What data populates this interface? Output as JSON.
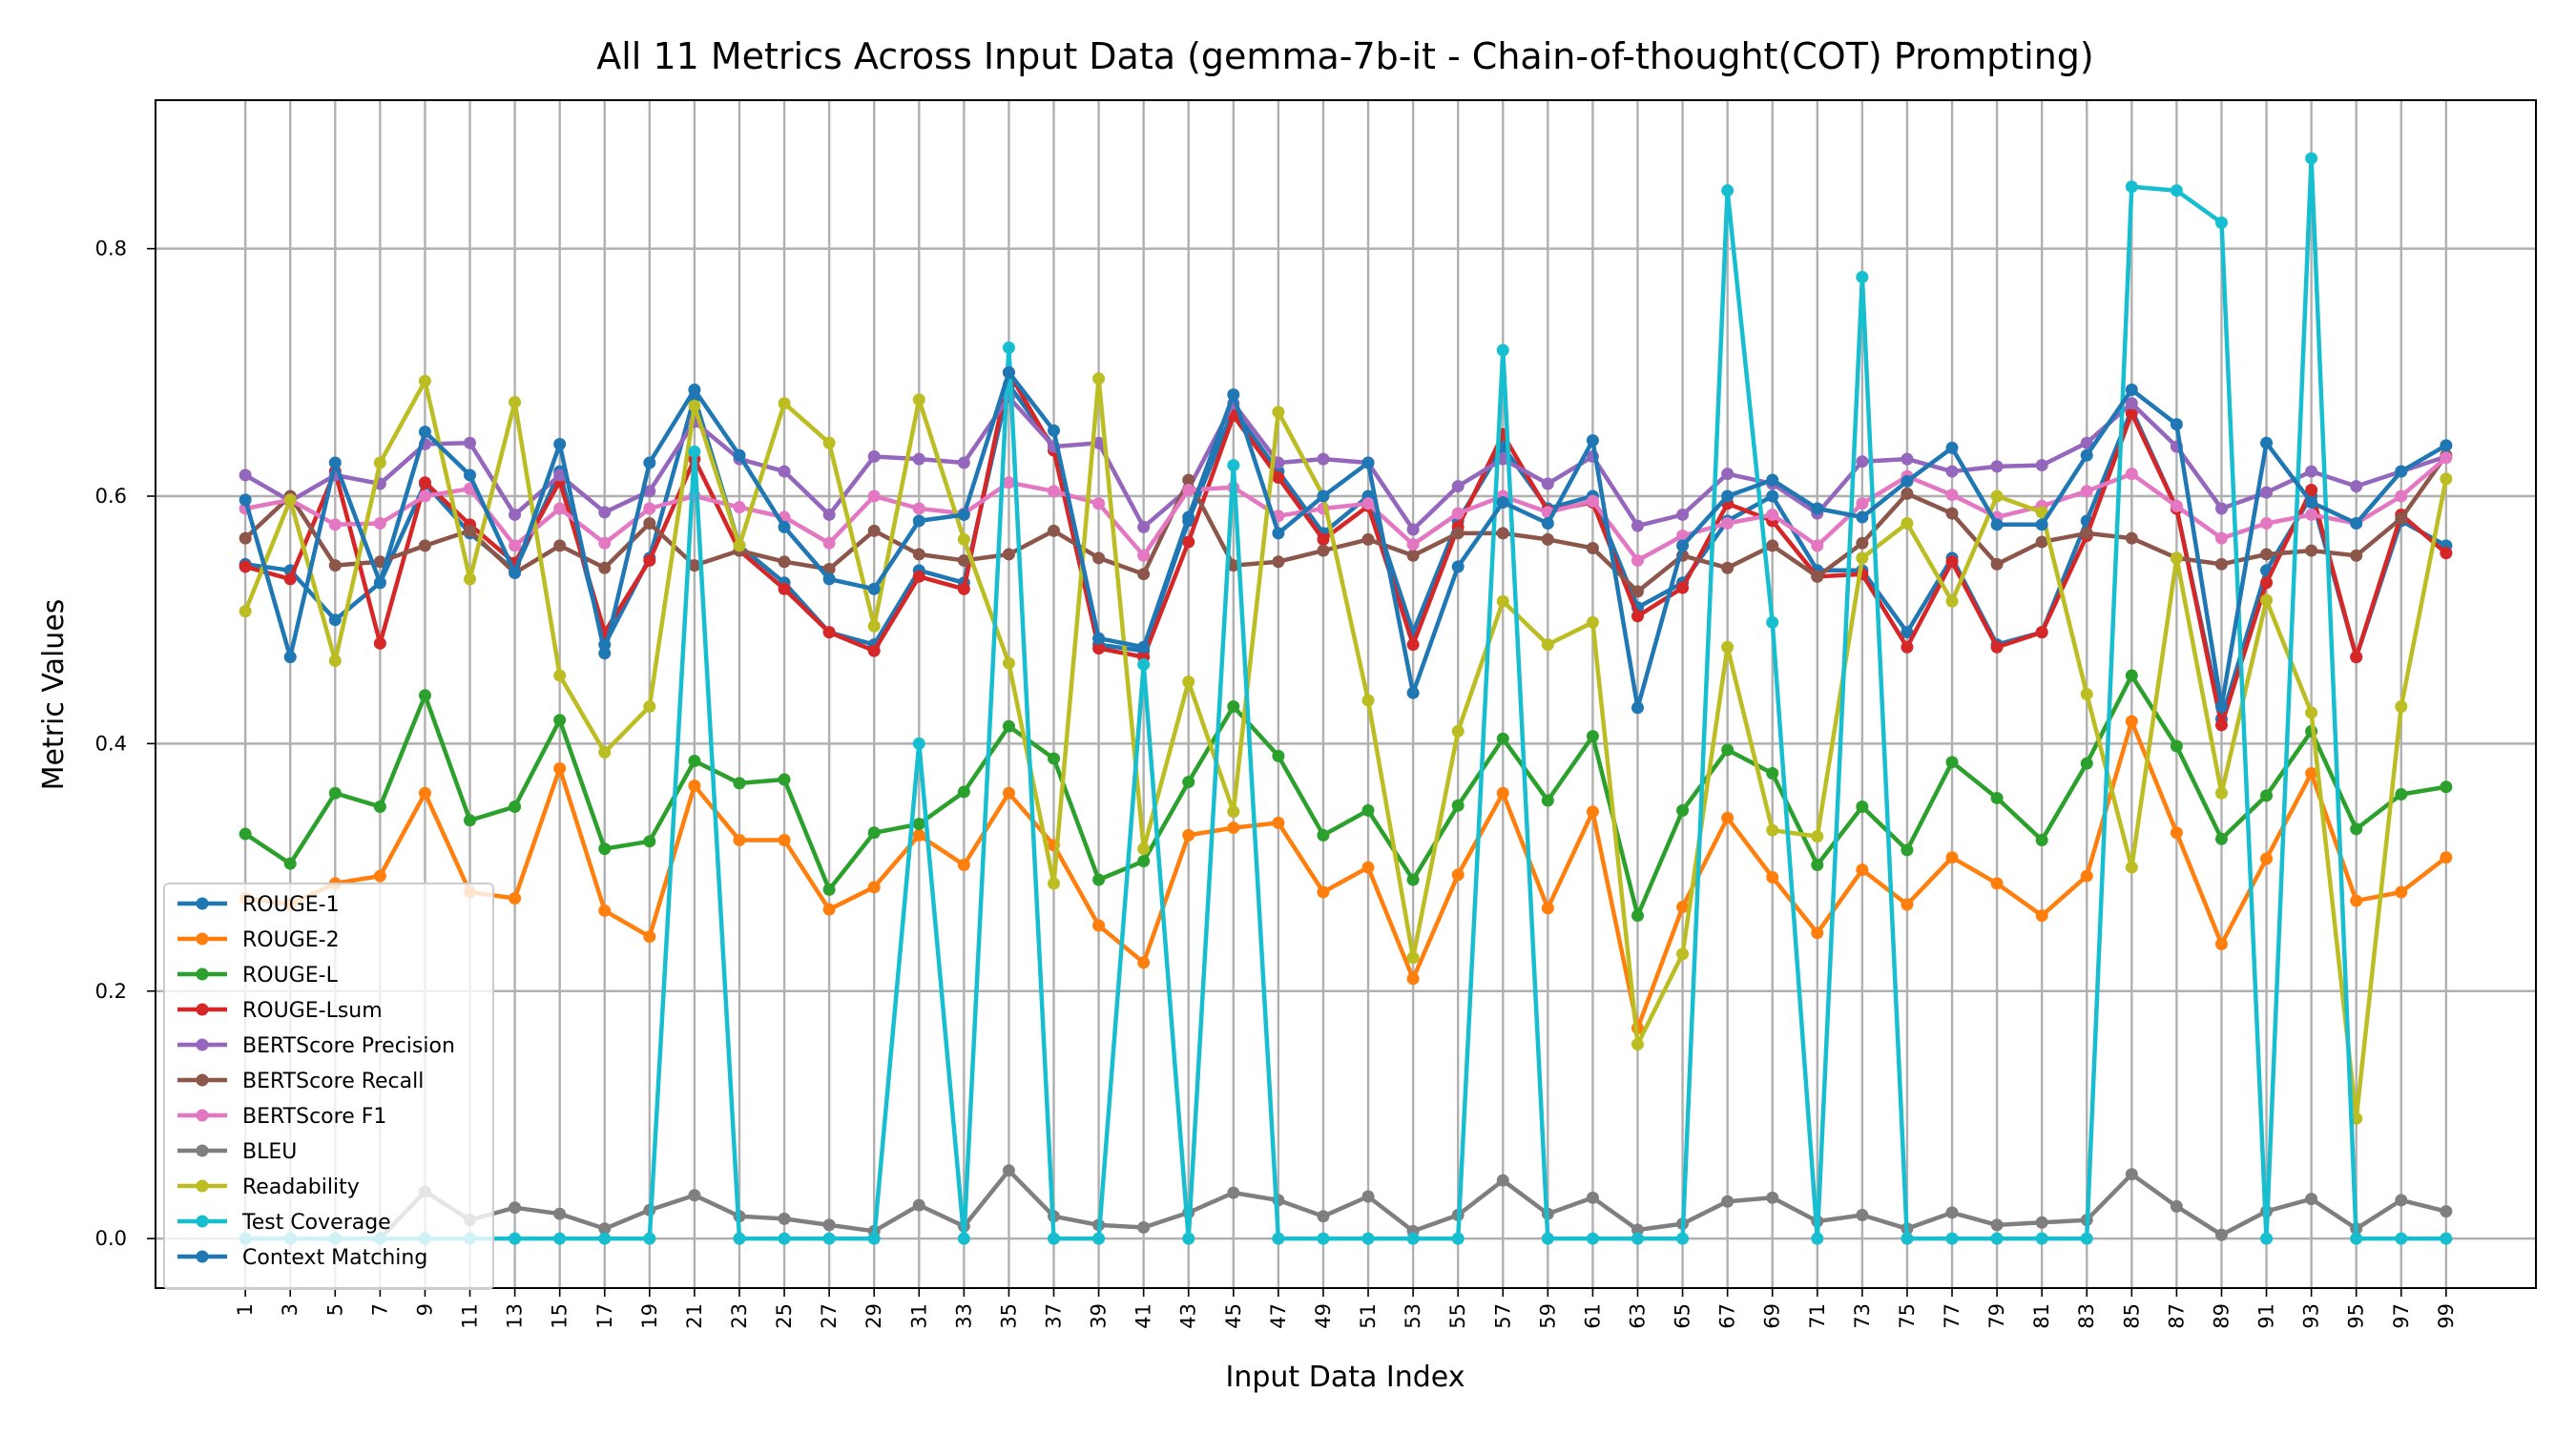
{
  "chart_data": {
    "type": "line",
    "title": "All 11 Metrics Across Input Data (gemma-7b-it - Chain-of-thought(COT) Prompting)",
    "xlabel": "Input Data Index",
    "ylabel": "Metric Values",
    "x": [
      1,
      3,
      5,
      7,
      9,
      11,
      13,
      15,
      17,
      19,
      21,
      23,
      25,
      27,
      29,
      31,
      33,
      35,
      37,
      39,
      41,
      43,
      45,
      47,
      49,
      51,
      53,
      55,
      57,
      59,
      61,
      63,
      65,
      67,
      69,
      71,
      73,
      75,
      77,
      79,
      81,
      83,
      85,
      87,
      89,
      91,
      93,
      95,
      97,
      99
    ],
    "x_ticks": [
      "1",
      "3",
      "5",
      "7",
      "9",
      "11",
      "13",
      "15",
      "17",
      "19",
      "21",
      "23",
      "25",
      "27",
      "29",
      "31",
      "33",
      "35",
      "37",
      "39",
      "41",
      "43",
      "45",
      "47",
      "49",
      "51",
      "53",
      "55",
      "57",
      "59",
      "61",
      "63",
      "65",
      "67",
      "69",
      "71",
      "73",
      "75",
      "77",
      "79",
      "81",
      "83",
      "85",
      "87",
      "89",
      "91",
      "93",
      "95",
      "97",
      "99"
    ],
    "y_ticks": [
      "0.0",
      "0.2",
      "0.4",
      "0.6",
      "0.8"
    ],
    "xlim": [
      -3,
      103
    ],
    "ylim": [
      -0.04,
      0.92
    ],
    "grid": true,
    "legend_position": "lower-left",
    "series": [
      {
        "name": "ROUGE-1",
        "color": "#1f77b4",
        "values": [
          0.545,
          0.54,
          0.5,
          0.53,
          0.61,
          0.57,
          0.54,
          0.62,
          0.48,
          0.55,
          0.68,
          0.56,
          0.53,
          0.49,
          0.48,
          0.54,
          0.53,
          0.69,
          0.64,
          0.48,
          0.475,
          0.58,
          0.67,
          0.62,
          0.57,
          0.6,
          0.49,
          0.58,
          0.64,
          0.59,
          0.6,
          0.51,
          0.53,
          0.58,
          0.6,
          0.54,
          0.54,
          0.49,
          0.55,
          0.48,
          0.49,
          0.58,
          0.67,
          0.59,
          0.42,
          0.54,
          0.6,
          0.47,
          0.58,
          0.56
        ]
      },
      {
        "name": "ROUGE-2",
        "color": "#ff7f0e",
        "values": [
          0.275,
          0.27,
          0.287,
          0.293,
          0.36,
          0.28,
          0.275,
          0.38,
          0.265,
          0.244,
          0.366,
          0.322,
          0.322,
          0.266,
          0.284,
          0.326,
          0.302,
          0.36,
          0.318,
          0.253,
          0.223,
          0.326,
          0.332,
          0.336,
          0.28,
          0.3,
          0.21,
          0.294,
          0.36,
          0.267,
          0.345,
          0.17,
          0.268,
          0.34,
          0.292,
          0.247,
          0.298,
          0.27,
          0.308,
          0.287,
          0.261,
          0.293,
          0.418,
          0.328,
          0.238,
          0.307,
          0.376,
          0.273,
          0.28,
          0.308
        ]
      },
      {
        "name": "ROUGE-L",
        "color": "#2ca02c",
        "values": [
          0.327,
          0.303,
          0.36,
          0.349,
          0.439,
          0.338,
          0.349,
          0.419,
          0.315,
          0.321,
          0.386,
          0.368,
          0.371,
          0.282,
          0.328,
          0.335,
          0.361,
          0.414,
          0.388,
          0.29,
          0.305,
          0.369,
          0.43,
          0.39,
          0.326,
          0.346,
          0.29,
          0.35,
          0.404,
          0.354,
          0.406,
          0.261,
          0.346,
          0.395,
          0.376,
          0.302,
          0.349,
          0.314,
          0.385,
          0.356,
          0.322,
          0.384,
          0.455,
          0.398,
          0.323,
          0.358,
          0.41,
          0.331,
          0.359,
          0.365
        ]
      },
      {
        "name": "ROUGE-Lsum",
        "color": "#d62728",
        "values": [
          0.543,
          0.533,
          0.62,
          0.481,
          0.611,
          0.577,
          0.546,
          0.612,
          0.49,
          0.548,
          0.63,
          0.556,
          0.525,
          0.49,
          0.475,
          0.535,
          0.525,
          0.7,
          0.637,
          0.477,
          0.47,
          0.563,
          0.665,
          0.615,
          0.565,
          0.592,
          0.48,
          0.575,
          0.65,
          0.588,
          0.595,
          0.503,
          0.526,
          0.594,
          0.58,
          0.535,
          0.537,
          0.478,
          0.547,
          0.478,
          0.49,
          0.568,
          0.667,
          0.59,
          0.415,
          0.53,
          0.605,
          0.47,
          0.585,
          0.554
        ]
      },
      {
        "name": "BERTScore Precision",
        "color": "#9467bd",
        "values": [
          0.617,
          0.596,
          0.617,
          0.61,
          0.642,
          0.643,
          0.585,
          0.617,
          0.587,
          0.604,
          0.66,
          0.63,
          0.62,
          0.585,
          0.632,
          0.63,
          0.627,
          0.68,
          0.64,
          0.643,
          0.575,
          0.606,
          0.675,
          0.627,
          0.63,
          0.627,
          0.573,
          0.608,
          0.63,
          0.61,
          0.632,
          0.576,
          0.585,
          0.618,
          0.61,
          0.586,
          0.628,
          0.63,
          0.62,
          0.624,
          0.625,
          0.643,
          0.675,
          0.64,
          0.59,
          0.603,
          0.62,
          0.608,
          0.62,
          0.632
        ]
      },
      {
        "name": "BERTScore Recall",
        "color": "#8c564b",
        "values": [
          0.566,
          0.6,
          0.544,
          0.547,
          0.56,
          0.572,
          0.538,
          0.56,
          0.542,
          0.578,
          0.544,
          0.556,
          0.547,
          0.541,
          0.572,
          0.553,
          0.548,
          0.553,
          0.572,
          0.55,
          0.537,
          0.613,
          0.544,
          0.547,
          0.556,
          0.565,
          0.552,
          0.57,
          0.57,
          0.565,
          0.558,
          0.523,
          0.552,
          0.542,
          0.56,
          0.535,
          0.562,
          0.602,
          0.586,
          0.545,
          0.563,
          0.57,
          0.566,
          0.55,
          0.545,
          0.553,
          0.556,
          0.552,
          0.582,
          0.633
        ]
      },
      {
        "name": "BERTScore F1",
        "color": "#e377c2",
        "values": [
          0.59,
          0.597,
          0.577,
          0.578,
          0.6,
          0.606,
          0.56,
          0.59,
          0.562,
          0.59,
          0.6,
          0.591,
          0.583,
          0.562,
          0.6,
          0.59,
          0.586,
          0.611,
          0.604,
          0.594,
          0.552,
          0.605,
          0.607,
          0.584,
          0.59,
          0.594,
          0.561,
          0.586,
          0.6,
          0.587,
          0.596,
          0.548,
          0.568,
          0.578,
          0.585,
          0.56,
          0.594,
          0.616,
          0.601,
          0.583,
          0.592,
          0.604,
          0.618,
          0.592,
          0.566,
          0.578,
          0.585,
          0.578,
          0.6,
          0.631
        ]
      },
      {
        "name": "BLEU",
        "color": "#7f7f7f",
        "values": [
          0.0,
          0.0,
          0.0,
          0.0,
          0.038,
          0.015,
          0.025,
          0.02,
          0.008,
          0.023,
          0.035,
          0.018,
          0.016,
          0.011,
          0.006,
          0.027,
          0.01,
          0.055,
          0.018,
          0.011,
          0.009,
          0.021,
          0.037,
          0.031,
          0.018,
          0.034,
          0.006,
          0.019,
          0.047,
          0.02,
          0.033,
          0.007,
          0.012,
          0.03,
          0.033,
          0.014,
          0.019,
          0.008,
          0.021,
          0.011,
          0.013,
          0.015,
          0.052,
          0.026,
          0.003,
          0.022,
          0.032,
          0.008,
          0.031,
          0.022
        ]
      },
      {
        "name": "Readability",
        "color": "#bcbd22",
        "values": [
          0.507,
          0.597,
          0.467,
          0.627,
          0.693,
          0.533,
          0.676,
          0.455,
          0.393,
          0.43,
          0.673,
          0.56,
          0.675,
          0.643,
          0.495,
          0.678,
          0.565,
          0.465,
          0.287,
          0.695,
          0.315,
          0.45,
          0.345,
          0.668,
          0.6,
          0.435,
          0.227,
          0.41,
          0.515,
          0.48,
          0.498,
          0.157,
          0.23,
          0.478,
          0.33,
          0.325,
          0.55,
          0.578,
          0.515,
          0.6,
          0.587,
          0.44,
          0.3,
          0.55,
          0.36,
          0.516,
          0.425,
          0.097,
          0.43,
          0.614
        ]
      },
      {
        "name": "Test Coverage",
        "color": "#17becf",
        "values": [
          0.0,
          0.0,
          0.0,
          0.0,
          0.0,
          0.0,
          0.0,
          0.0,
          0.0,
          0.0,
          0.636,
          0.0,
          0.0,
          0.0,
          0.0,
          0.4,
          0.0,
          0.72,
          0.0,
          0.0,
          0.464,
          0.0,
          0.625,
          0.0,
          0.0,
          0.0,
          0.0,
          0.0,
          0.718,
          0.0,
          0.0,
          0.0,
          0.0,
          0.847,
          0.498,
          0.0,
          0.777,
          0.0,
          0.0,
          0.0,
          0.0,
          0.0,
          0.85,
          0.847,
          0.821,
          0.0,
          0.873,
          0.0,
          0.0,
          0.0
        ]
      },
      {
        "name": "Context Matching",
        "color": "#1f77b4",
        "values": [
          0.597,
          0.47,
          0.627,
          0.53,
          0.652,
          0.617,
          0.538,
          0.642,
          0.473,
          0.627,
          0.686,
          0.633,
          0.575,
          0.533,
          0.525,
          0.58,
          0.585,
          0.7,
          0.653,
          0.485,
          0.478,
          0.583,
          0.682,
          0.57,
          0.6,
          0.627,
          0.441,
          0.543,
          0.595,
          0.578,
          0.645,
          0.429,
          0.56,
          0.6,
          0.613,
          0.59,
          0.583,
          0.612,
          0.639,
          0.577,
          0.577,
          0.633,
          0.686,
          0.658,
          0.43,
          0.643,
          0.595,
          0.578,
          0.62,
          0.641
        ]
      }
    ]
  }
}
